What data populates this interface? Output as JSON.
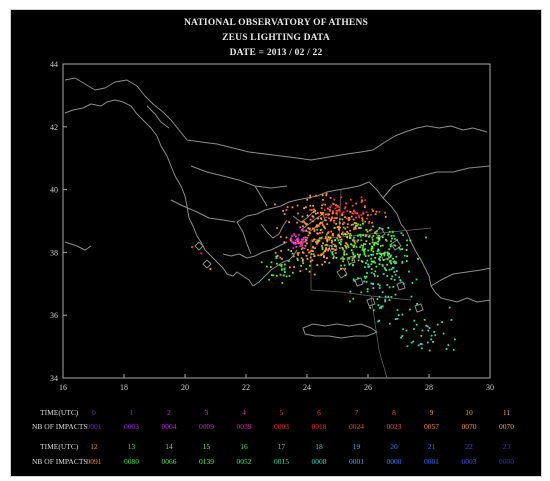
{
  "header": {
    "line1": "NATIONAL OBSERVATORY OF ATHENS",
    "line2": "ZEUS LIGHTING DATA",
    "line3": "DATE = 2013 / 02 / 22"
  },
  "map": {
    "x_ticks": [
      "16",
      "18",
      "20",
      "22",
      "24",
      "26",
      "28",
      "30"
    ],
    "y_ticks": [
      "44",
      "42",
      "40",
      "38",
      "36",
      "34"
    ],
    "lon_range": [
      16,
      30
    ],
    "lat_range": [
      34,
      44
    ],
    "background": "#000000",
    "border_color": "#a8a8a8"
  },
  "legend": {
    "time_label": "TIME(UTC)",
    "impacts_label": "NB OF IMPACTS",
    "rows": [
      {
        "hours": [
          "0",
          "1",
          "2",
          "3",
          "4",
          "5",
          "6",
          "7",
          "8",
          "9",
          "10",
          "11"
        ],
        "counts": [
          "0001",
          "0003",
          "0004",
          "0009",
          "0039",
          "0003",
          "0018",
          "0024",
          "0023",
          "0057",
          "0070",
          "0070"
        ],
        "colors": [
          "#7a1fc4",
          "#a020d0",
          "#c020e0",
          "#d020c8",
          "#e020b0",
          "#f02040",
          "#ff2a2a",
          "#ff3a2a",
          "#ff4a3a",
          "#ff8c1a",
          "#ff9a2a",
          "#ffa640"
        ]
      },
      {
        "hours": [
          "12",
          "13",
          "14",
          "15",
          "16",
          "17",
          "18",
          "19",
          "20",
          "21",
          "22",
          "23"
        ],
        "counts": [
          "0091",
          "0080",
          "0066",
          "0139",
          "0052",
          "0015",
          "0008",
          "0001",
          "0000",
          "0001",
          "0003",
          "0000"
        ],
        "colors": [
          "#ff8a2a",
          "#40e040",
          "#5ae05a",
          "#60ff40",
          "#30e870",
          "#30e0a0",
          "#40d0c0",
          "#40a0ff",
          "#3080ff",
          "#2070ff",
          "#3050ff",
          "#2030e0"
        ]
      }
    ]
  }
}
